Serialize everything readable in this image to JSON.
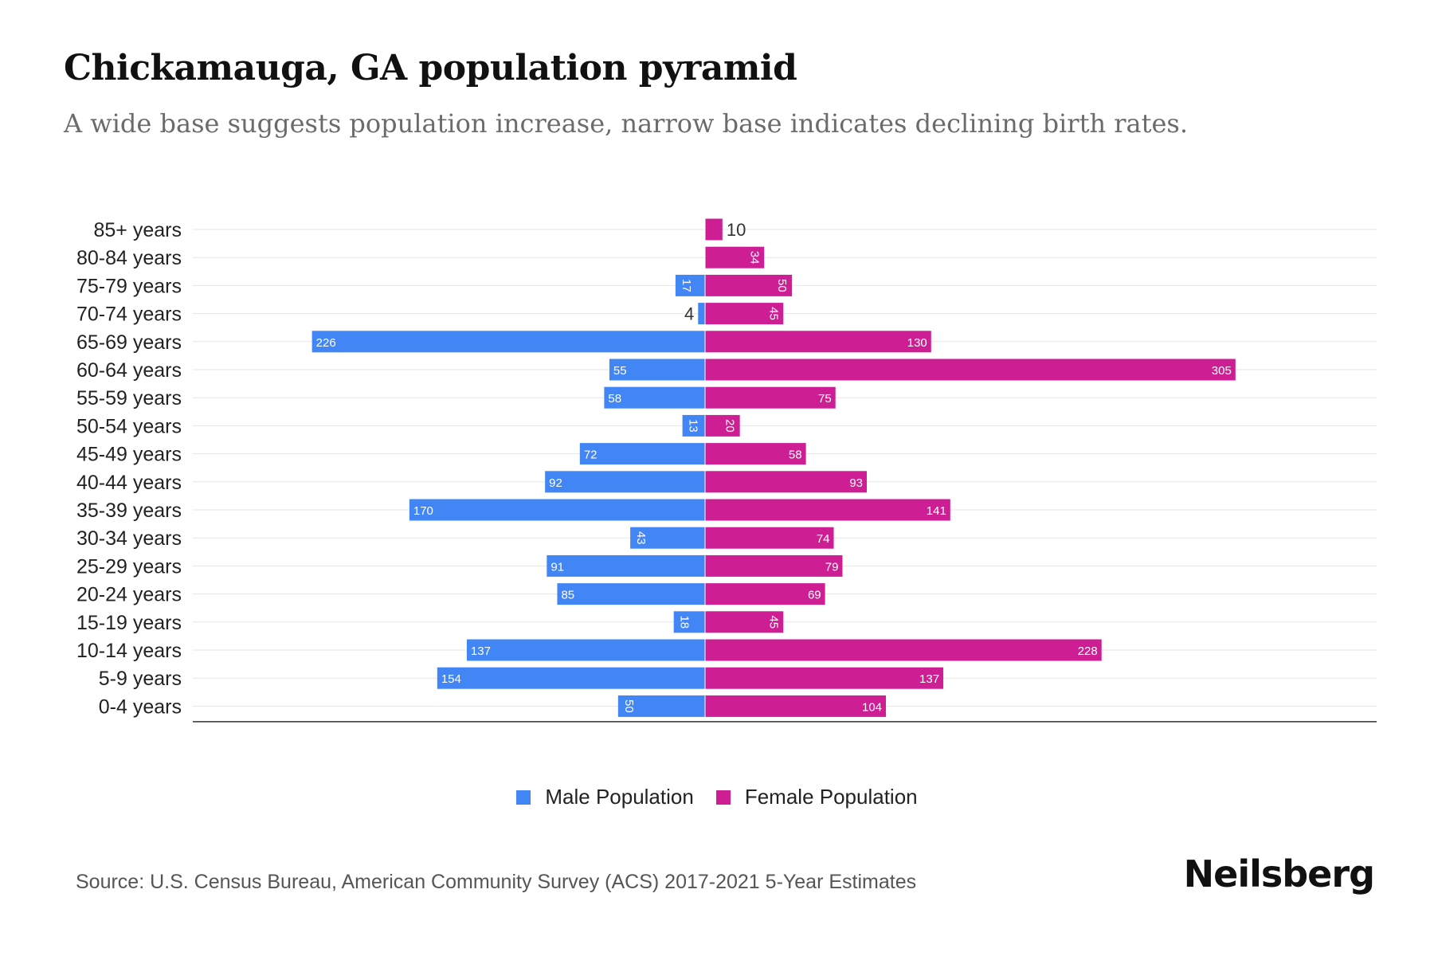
{
  "title": "Chickamauga, GA population pyramid",
  "subtitle": "A wide base suggests population increase, narrow base indicates declining birth rates.",
  "source": "Source: U.S. Census Bureau, American Community Survey (ACS) 2017-2021 5-Year Estimates",
  "brand": "Neilsberg",
  "colors": {
    "male": "#4285f4",
    "female": "#cd1f93"
  },
  "legend": {
    "male_label": "Male Population",
    "female_label": "Female Population"
  },
  "chart_data": {
    "type": "bar",
    "orientation": "horizontal-pyramid",
    "categories": [
      "85+ years",
      "80-84 years",
      "75-79 years",
      "70-74 years",
      "65-69 years",
      "60-64 years",
      "55-59 years",
      "50-54 years",
      "45-49 years",
      "40-44 years",
      "35-39 years",
      "30-34 years",
      "25-29 years",
      "20-24 years",
      "15-19 years",
      "10-14 years",
      "5-9 years",
      "0-4 years"
    ],
    "series": [
      {
        "name": "Male Population",
        "values": [
          0,
          0,
          17,
          4,
          226,
          55,
          58,
          13,
          72,
          92,
          170,
          43,
          91,
          85,
          18,
          137,
          154,
          50
        ]
      },
      {
        "name": "Female Population",
        "values": [
          10,
          34,
          50,
          45,
          130,
          305,
          75,
          20,
          58,
          93,
          141,
          74,
          79,
          69,
          45,
          228,
          137,
          104
        ]
      }
    ],
    "title": "Chickamauga, GA population pyramid",
    "xlabel": "",
    "ylabel": "",
    "legend_position": "bottom"
  }
}
